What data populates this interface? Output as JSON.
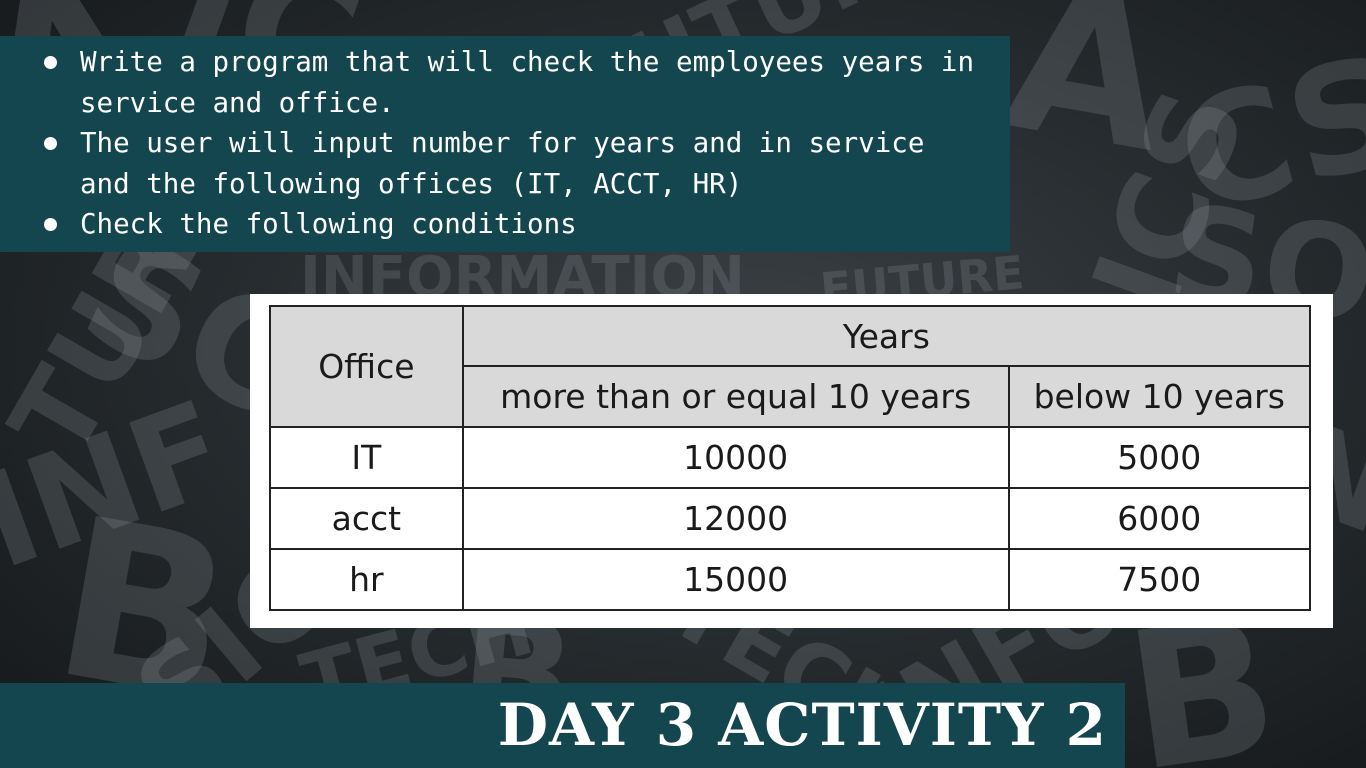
{
  "bullets": [
    "Write a program that will check the employees years in service and office.",
    "The user will input number for years and in service and the following offices (IT, ACCT, HR)",
    "Check the following conditions"
  ],
  "table": {
    "office_header": "Office",
    "years_header": "Years",
    "col_ge10": "more than or equal 10 years",
    "col_below10": "below 10 years",
    "rows": [
      {
        "office": "IT",
        "ge10": "10000",
        "below10": "5000"
      },
      {
        "office": "acct",
        "ge10": "12000",
        "below10": "6000"
      },
      {
        "office": "hr",
        "ge10": "15000",
        "below10": "7500"
      }
    ]
  },
  "title": "DAY 3 ACTIVITY 2",
  "colors": {
    "panel": "#14464f",
    "header_cell": "#d9d9d9"
  }
}
